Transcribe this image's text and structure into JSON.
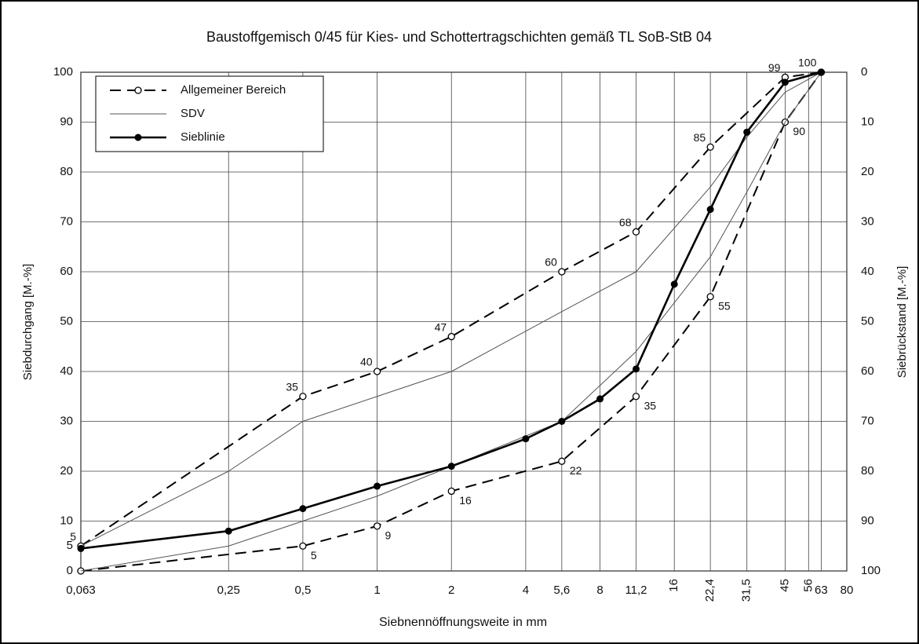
{
  "chart_data": {
    "type": "line",
    "title": "Baustoffgemisch 0/45 für Kies- und Schottertragschichten gemäß TL SoB-StB 04",
    "xlabel": "Siebnennöffnungsweite in mm",
    "ylabel": "Siebdurchgang  [M.-%]",
    "y2label": "Siebrückstand  [M.-%]",
    "xscale": "log",
    "xlim": [
      0.063,
      80
    ],
    "xticks": [
      {
        "value": 0.063,
        "label": "0,063"
      },
      {
        "value": 0.25,
        "label": "0,25"
      },
      {
        "value": 0.5,
        "label": "0,5"
      },
      1,
      2,
      4,
      {
        "value": 5.6,
        "label": "5,6"
      },
      8,
      {
        "value": 11.2,
        "label": "11,2"
      },
      16,
      {
        "value": 22.4,
        "label": "22,4"
      },
      {
        "value": 31.5,
        "label": "31,5"
      },
      45,
      56,
      63,
      80
    ],
    "xtick_rotated": [
      false,
      false,
      false,
      false,
      false,
      false,
      false,
      false,
      false,
      true,
      true,
      true,
      true,
      true,
      false,
      false
    ],
    "ylim": [
      0,
      100
    ],
    "yticks": [
      0,
      5,
      10,
      20,
      30,
      40,
      50,
      60,
      70,
      80,
      90,
      100
    ],
    "y2lim": [
      100,
      0
    ],
    "y2ticks": [
      0,
      10,
      20,
      30,
      40,
      50,
      60,
      70,
      80,
      90,
      100
    ],
    "grid": true,
    "legend": "upper left",
    "series": [
      {
        "name": "Allgemeiner Bereich",
        "color": "#000000",
        "style": "dashed",
        "marker": "open",
        "lines": [
          {
            "x": [
              0.063,
              0.5,
              1,
              2,
              5.6,
              11.2,
              22.4,
              45,
              63
            ],
            "values": [
              5,
              35,
              40,
              47,
              60,
              68,
              85,
              99,
              100
            ],
            "labeled": [
              true,
              true,
              true,
              true,
              true,
              true,
              true,
              true,
              true
            ],
            "label_side": "upper"
          },
          {
            "x": [
              0.063,
              0.5,
              1,
              2,
              5.6,
              11.2,
              22.4,
              45,
              63
            ],
            "values": [
              0,
              5,
              9,
              16,
              22,
              35,
              55,
              90,
              100
            ],
            "labeled": [
              false,
              true,
              true,
              true,
              true,
              true,
              true,
              true,
              false
            ],
            "label_side": "lower"
          }
        ]
      },
      {
        "name": "SDV",
        "color": "#555555",
        "style": "thin",
        "marker": "none",
        "lines": [
          {
            "x": [
              0.063,
              0.25,
              0.5,
              1,
              2,
              5.6,
              11.2,
              22.4,
              31.5,
              45,
              63
            ],
            "values": [
              5,
              20,
              30,
              35,
              40,
              52,
              60,
              77,
              87,
              96,
              100
            ]
          },
          {
            "x": [
              0.063,
              0.25,
              0.5,
              1,
              2,
              5.6,
              11.2,
              22.4,
              31.5,
              45,
              63
            ],
            "values": [
              0,
              5,
              10,
              15,
              21,
              30,
              44,
              63,
              76,
              90,
              100
            ]
          }
        ]
      },
      {
        "name": "Sieblinie",
        "color": "#000000",
        "style": "thick",
        "marker": "filled",
        "lines": [
          {
            "x": [
              0.063,
              0.25,
              0.5,
              1,
              2,
              4,
              5.6,
              8,
              11.2,
              16,
              22.4,
              31.5,
              45,
              63
            ],
            "values": [
              4.5,
              8,
              12.5,
              17,
              21,
              26.5,
              30,
              34.5,
              40.5,
              57.5,
              72.5,
              88,
              98,
              100
            ]
          }
        ]
      }
    ]
  }
}
